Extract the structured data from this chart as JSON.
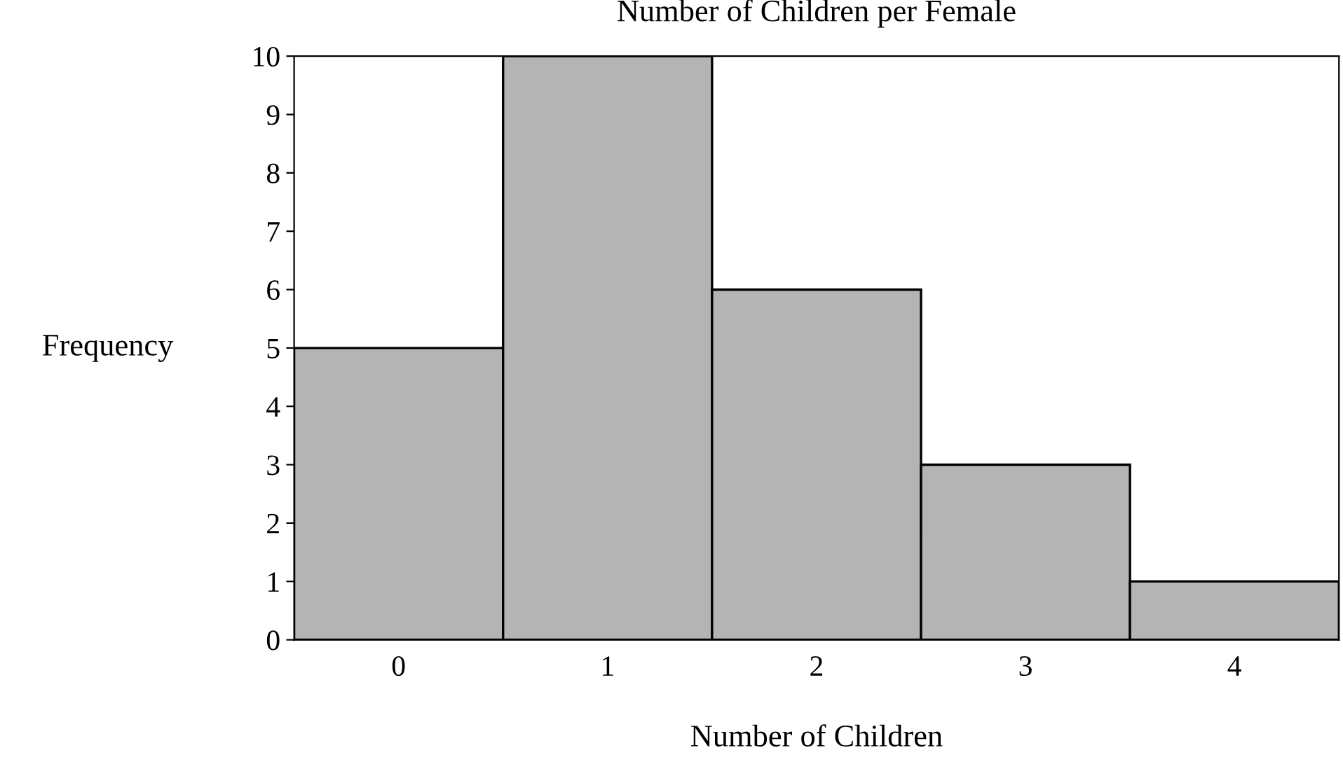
{
  "chart_data": {
    "type": "bar",
    "title": "Number of Children per Female",
    "xlabel": "Number of Children",
    "ylabel": "Frequency",
    "categories": [
      "0",
      "1",
      "2",
      "3",
      "4"
    ],
    "values": [
      5,
      10,
      6,
      3,
      1
    ],
    "color": "#b4b4b4",
    "ylim": [
      0,
      10
    ],
    "yticks": [
      0,
      1,
      2,
      3,
      4,
      5,
      6,
      7,
      8,
      9,
      10
    ],
    "grid": false
  }
}
